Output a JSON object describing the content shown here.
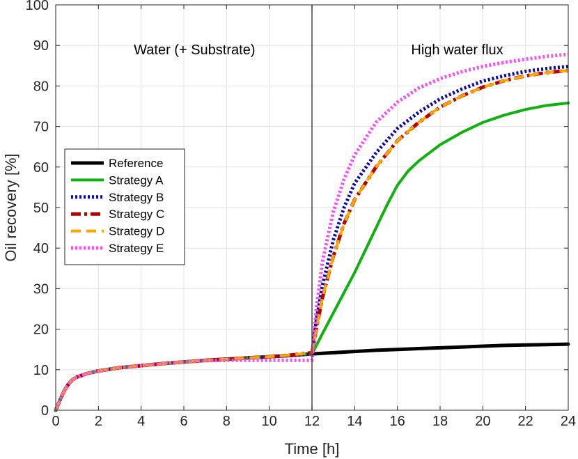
{
  "chart_data": {
    "type": "line",
    "title": "",
    "xlabel": "Time [h]",
    "ylabel": "Oil recovery [%]",
    "xlim": [
      0,
      24
    ],
    "ylim": [
      0,
      100
    ],
    "xticks": [
      0,
      2,
      4,
      6,
      8,
      10,
      12,
      14,
      16,
      18,
      20,
      22,
      24
    ],
    "yticks": [
      0,
      10,
      20,
      30,
      40,
      50,
      60,
      70,
      80,
      90,
      100
    ],
    "grid": true,
    "legend_position": "center-left",
    "divider_x": 12,
    "annotations": [
      {
        "text": "Water (+ Substrate)",
        "x": 6.5,
        "y": 89
      },
      {
        "text": "High water flux",
        "x": 18.8,
        "y": 89
      }
    ],
    "series": [
      {
        "name": "Reference",
        "color": "#000000",
        "style": "solid",
        "width": 5,
        "x": [
          0,
          0.2,
          0.4,
          0.6,
          0.8,
          1,
          1.5,
          2,
          3,
          4,
          5,
          6,
          7,
          8,
          9,
          10,
          11,
          12,
          13,
          14,
          15,
          16,
          17,
          18,
          19,
          20,
          21,
          22,
          23,
          24
        ],
        "y": [
          0,
          2.5,
          4.8,
          6.5,
          7.6,
          8.2,
          9.1,
          9.7,
          10.5,
          11.0,
          11.5,
          11.9,
          12.3,
          12.6,
          12.9,
          13.2,
          13.5,
          13.9,
          14.2,
          14.5,
          14.8,
          15.0,
          15.2,
          15.4,
          15.6,
          15.8,
          16.0,
          16.1,
          16.2,
          16.3
        ]
      },
      {
        "name": "Strategy A",
        "color": "#10b010",
        "style": "solid",
        "width": 4,
        "x": [
          0,
          0.2,
          0.4,
          0.6,
          0.8,
          1,
          1.5,
          2,
          3,
          4,
          5,
          6,
          7,
          8,
          9,
          10,
          11,
          12,
          12.5,
          13,
          13.5,
          14,
          14.5,
          15,
          15.5,
          16,
          16.5,
          17,
          17.5,
          18,
          19,
          20,
          21,
          22,
          23,
          24
        ],
        "y": [
          0,
          2.5,
          4.8,
          6.5,
          7.6,
          8.2,
          9.1,
          9.7,
          10.5,
          11.0,
          11.5,
          11.9,
          12.3,
          12.6,
          12.9,
          13.2,
          13.5,
          13.9,
          19,
          24,
          29,
          34,
          39.5,
          45,
          50.5,
          55.5,
          59,
          61.5,
          63.5,
          65.5,
          68.5,
          71,
          72.8,
          74.2,
          75.2,
          75.8
        ]
      },
      {
        "name": "Strategy B",
        "color": "#0a0aa0",
        "style": "dotted",
        "width": 5,
        "x": [
          0,
          0.2,
          0.4,
          0.6,
          0.8,
          1,
          1.5,
          2,
          3,
          4,
          5,
          6,
          7,
          8,
          9,
          10,
          11,
          12,
          12.2,
          12.5,
          13,
          13.5,
          14,
          15,
          16,
          17,
          18,
          19,
          20,
          21,
          22,
          23,
          24
        ],
        "y": [
          0,
          2.5,
          4.8,
          6.5,
          7.6,
          8.2,
          9.1,
          9.7,
          10.5,
          11.0,
          11.5,
          11.9,
          12.3,
          12.6,
          12.9,
          13.2,
          13.5,
          13.9,
          22,
          31,
          42,
          50,
          56,
          63.5,
          69.5,
          73.5,
          76.8,
          79.2,
          81.2,
          82.5,
          83.6,
          84.3,
          84.8
        ]
      },
      {
        "name": "Strategy C",
        "color": "#b00000",
        "style": "dashdot",
        "width": 5,
        "x": [
          0,
          0.2,
          0.4,
          0.6,
          0.8,
          1,
          1.5,
          2,
          3,
          4,
          5,
          6,
          7,
          8,
          9,
          10,
          11,
          12,
          12.2,
          12.5,
          13,
          13.5,
          14,
          15,
          16,
          17,
          18,
          19,
          20,
          21,
          22,
          23,
          24
        ],
        "y": [
          0,
          2.5,
          4.8,
          6.5,
          7.6,
          8.2,
          9.1,
          9.7,
          10.5,
          11.0,
          11.5,
          11.9,
          12.3,
          12.6,
          12.9,
          13.2,
          13.6,
          14.2,
          20,
          28,
          38,
          46,
          52,
          60,
          66.5,
          71,
          74.8,
          77.5,
          79.7,
          81.3,
          82.5,
          83.3,
          83.8
        ]
      },
      {
        "name": "Strategy D",
        "color": "#ffa500",
        "style": "dashed",
        "width": 4,
        "x": [
          0,
          0.2,
          0.4,
          0.6,
          0.8,
          1,
          1.5,
          2,
          3,
          4,
          5,
          6,
          7,
          8,
          9,
          10,
          11,
          12,
          12.2,
          12.5,
          13,
          13.5,
          14,
          15,
          16,
          17,
          18,
          19,
          20,
          21,
          22,
          23,
          24
        ],
        "y": [
          0,
          2.5,
          4.8,
          6.5,
          7.6,
          8.2,
          9.1,
          9.7,
          10.5,
          11.0,
          11.5,
          11.9,
          12.3,
          12.6,
          12.9,
          13.2,
          13.6,
          14.2,
          20,
          28,
          38,
          46,
          52,
          60,
          66.5,
          71,
          74.8,
          77.5,
          79.7,
          81.3,
          82.5,
          83.3,
          83.8
        ]
      },
      {
        "name": "Strategy E",
        "color": "#f550f5",
        "style": "dotted",
        "width": 5,
        "x": [
          0,
          0.2,
          0.4,
          0.6,
          0.8,
          1,
          1.5,
          2,
          3,
          4,
          5,
          6,
          7,
          8,
          9,
          10,
          11,
          12,
          12.2,
          12.5,
          13,
          13.5,
          14,
          15,
          16,
          17,
          18,
          19,
          20,
          21,
          22,
          23,
          24
        ],
        "y": [
          0,
          2.5,
          4.8,
          6.5,
          7.6,
          8.2,
          9.1,
          9.7,
          10.5,
          11.0,
          11.5,
          11.9,
          12.2,
          12.3,
          12.3,
          12.3,
          12.3,
          12.3,
          25,
          37,
          49,
          57,
          63,
          71,
          76,
          79.5,
          81.8,
          83.5,
          84.8,
          85.8,
          86.6,
          87.3,
          87.8
        ]
      }
    ]
  }
}
